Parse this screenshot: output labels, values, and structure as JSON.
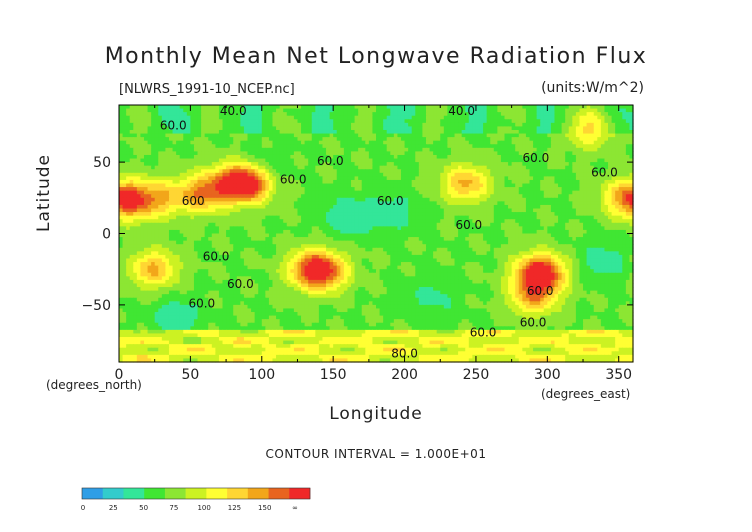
{
  "chart_data": {
    "type": "heatmap",
    "title": "Monthly Mean Net Longwave Radiation Flux",
    "file_label": "[NLWRS_1991-10_NCEP.nc]",
    "units_label": "(units:W/m^2)",
    "xlabel": "Longitude",
    "ylabel": "Latitude",
    "x_unit_label": "(degrees_east)",
    "y_unit_label": "(degrees_north)",
    "xlim": [
      0,
      360
    ],
    "ylim": [
      -90,
      90
    ],
    "x_ticks": [
      0,
      50,
      100,
      150,
      200,
      250,
      300,
      350
    ],
    "y_ticks": [
      50,
      0,
      -50
    ],
    "contour_interval_text": "CONTOUR INTERVAL = 1.000E+01",
    "contour_labels": [
      {
        "text": "40.0",
        "lon": 80,
        "lat": 83
      },
      {
        "text": "40.0",
        "lon": 240,
        "lat": 83
      },
      {
        "text": "60.0",
        "lon": 38,
        "lat": 73
      },
      {
        "text": "60.0",
        "lon": 148,
        "lat": 48
      },
      {
        "text": "60.0",
        "lon": 292,
        "lat": 50
      },
      {
        "text": "60.0",
        "lon": 340,
        "lat": 40
      },
      {
        "text": "60.0",
        "lon": 122,
        "lat": 35
      },
      {
        "text": "600",
        "lon": 52,
        "lat": 20
      },
      {
        "text": "60.0",
        "lon": 190,
        "lat": 20
      },
      {
        "text": "60.0",
        "lon": 245,
        "lat": 3
      },
      {
        "text": "60.0",
        "lon": 68,
        "lat": -19
      },
      {
        "text": "60.0",
        "lon": 85,
        "lat": -38
      },
      {
        "text": "60.0",
        "lon": 295,
        "lat": -43
      },
      {
        "text": "60.0",
        "lon": 58,
        "lat": -52
      },
      {
        "text": "60.0",
        "lon": 255,
        "lat": -72
      },
      {
        "text": "60.0",
        "lon": 290,
        "lat": -65
      },
      {
        "text": "80.0",
        "lon": 200,
        "lat": -87
      }
    ],
    "colorbar": {
      "colors": [
        "#2f9ee6",
        "#33cccc",
        "#33e699",
        "#40e633",
        "#8ce633",
        "#ccf222",
        "#ffff33",
        "#ffd633",
        "#f2a61a",
        "#e8641f",
        "#f02828"
      ],
      "tick_labels": [
        "0",
        "25",
        "50",
        "75",
        "100",
        "125",
        "150",
        "∞"
      ]
    },
    "features": [
      {
        "lon": 90,
        "lat": 35,
        "value": 150
      },
      {
        "lon": 58,
        "lat": 28,
        "value": 120
      },
      {
        "lon": 10,
        "lat": 23,
        "value": 120
      },
      {
        "lon": 30,
        "lat": 25,
        "value": 100
      },
      {
        "lon": 78,
        "lat": 36,
        "value": 100
      },
      {
        "lon": 243,
        "lat": 35,
        "value": 115
      },
      {
        "lon": 355,
        "lat": 25,
        "value": 110
      },
      {
        "lon": 330,
        "lat": 73,
        "value": 100
      },
      {
        "lon": 295,
        "lat": -28,
        "value": 160
      },
      {
        "lon": 290,
        "lat": -45,
        "value": 110
      },
      {
        "lon": 135,
        "lat": -25,
        "value": 125
      },
      {
        "lon": 145,
        "lat": -27,
        "value": 110
      },
      {
        "lon": 24,
        "lat": -25,
        "value": 115
      },
      {
        "lon": 190,
        "lat": 15,
        "value": 40
      },
      {
        "lon": 160,
        "lat": 12,
        "value": 38
      },
      {
        "lon": 220,
        "lat": -45,
        "value": 45
      },
      {
        "lon": 340,
        "lat": -20,
        "value": 40
      },
      {
        "lon": 40,
        "lat": -58,
        "value": 40
      },
      {
        "lon": 100,
        "lat": 45,
        "value": 45
      }
    ],
    "background_value": 62,
    "grid": false
  }
}
